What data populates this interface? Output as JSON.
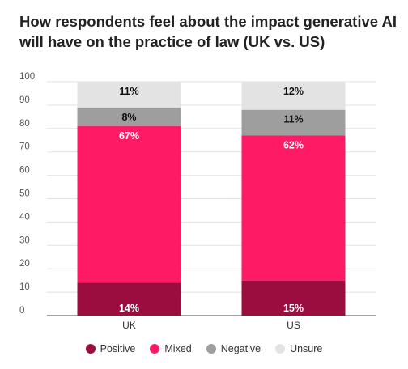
{
  "title_lines": [
    "How respondents feel about the impact generative AI",
    "will have on the practice of law (UK vs. US)"
  ],
  "chart_data": {
    "type": "bar",
    "stacked": true,
    "title": "How respondents feel about the impact generative AI will have on the practice of law (UK vs. US)",
    "categories": [
      "UK",
      "US"
    ],
    "ylim": [
      0,
      100
    ],
    "yticks": [
      0,
      10,
      20,
      30,
      40,
      50,
      60,
      70,
      80,
      90,
      100
    ],
    "grid": true,
    "legend_position": "bottom",
    "series": [
      {
        "name": "Positive",
        "color": "#9b0d3e",
        "values": [
          14,
          15
        ],
        "labels": [
          "14%",
          "15%"
        ],
        "label_color": "#ffffff"
      },
      {
        "name": "Mixed",
        "color": "#ff1a66",
        "values": [
          67,
          62
        ],
        "labels": [
          "67%",
          "62%"
        ],
        "label_color": "#ffffff"
      },
      {
        "name": "Negative",
        "color": "#9e9e9e",
        "values": [
          8,
          11
        ],
        "labels": [
          "8%",
          "11%"
        ],
        "label_color": "#111111"
      },
      {
        "name": "Unsure",
        "color": "#e3e3e3",
        "values": [
          11,
          12
        ],
        "labels": [
          "11%",
          "12%"
        ],
        "label_color": "#111111"
      }
    ]
  }
}
